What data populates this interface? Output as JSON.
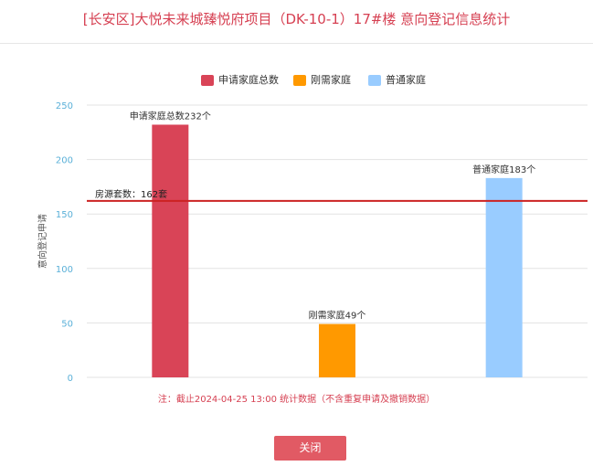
{
  "title": "[长安区]大悦未来城臻悦府项目（DK-10-1）17#楼 意向登记信息统计",
  "chart_data": {
    "type": "bar",
    "categories": [
      "申请家庭总数",
      "刚需家庭",
      "普通家庭"
    ],
    "values": [
      232,
      49,
      183
    ],
    "colors": [
      "#d94457",
      "#ff9900",
      "#99ccff"
    ],
    "data_labels": [
      "申请家庭总数232个",
      "刚需家庭49个",
      "普通家庭183个"
    ],
    "ylabel": "意向登记申请",
    "ylim": [
      0,
      250
    ],
    "yticks": [
      "0",
      "50",
      "100",
      "150",
      "200",
      "250"
    ],
    "grid": true,
    "legend_position": "top",
    "reference_line": {
      "value": 162,
      "label": "房源套数：162套",
      "color": "#cc2222"
    }
  },
  "note": "注：截止2024-04-25 13:00 统计数据（不含重复申请及撤销数据）",
  "close_label": "关闭"
}
